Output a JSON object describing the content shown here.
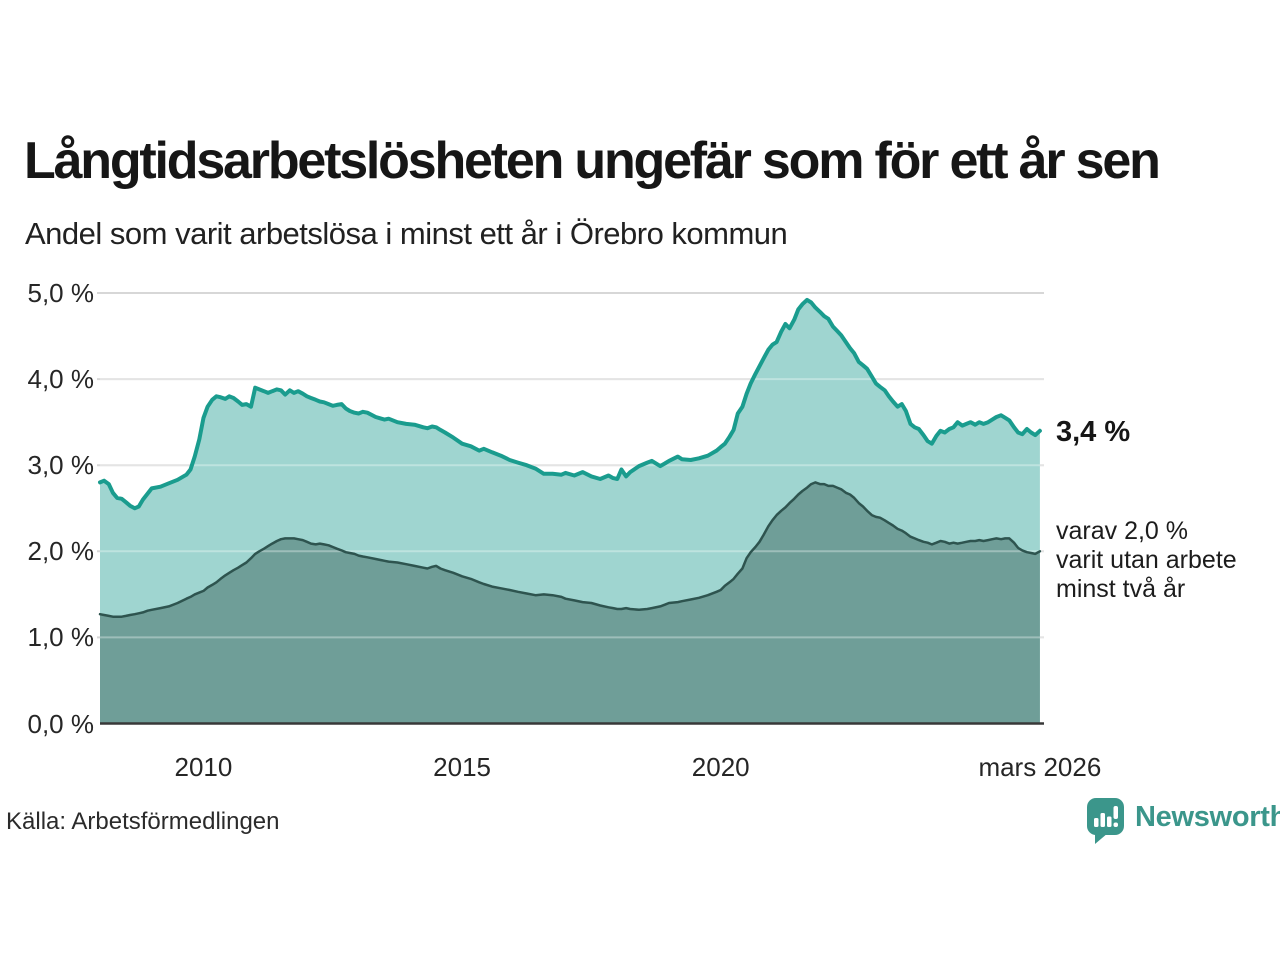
{
  "header": {
    "title": "Långtidsarbetslösheten ungefär som för ett år sen",
    "subtitle": "Andel som varit arbetslösa i minst ett år i Örebro kommun"
  },
  "annotations": {
    "latest_total_label": "3,4 %",
    "secondary_line1": "varav 2,0 %",
    "secondary_line2": "varit utan arbete",
    "secondary_line3": "minst två år"
  },
  "footer": {
    "source": "Källa: Arbetsförmedlingen",
    "brand_name": "Newsworthy",
    "brand_color": "#3b968b",
    "brand_icon": "speech-bubble-bar-chart"
  },
  "chart_data": {
    "type": "area",
    "title": "Långtidsarbetslösheten ungefär som för ett år sen",
    "subtitle": "Andel som varit arbetslösa i minst ett år i Örebro kommun",
    "xlim": [
      2008.0,
      2026.25
    ],
    "ylim": [
      0,
      5
    ],
    "grid": true,
    "grid_color": "#d7d7d7",
    "baseline_color": "#383838",
    "legend_position": "right-annotations",
    "y_ticks": [
      {
        "label": "5,0 %",
        "value": 5
      },
      {
        "label": "4,0 %",
        "value": 4
      },
      {
        "label": "3,0 %",
        "value": 3
      },
      {
        "label": "2,0 %",
        "value": 2
      },
      {
        "label": "1,0 %",
        "value": 1
      },
      {
        "label": "0,0 %",
        "value": 0
      }
    ],
    "x_ticks": [
      {
        "label": "2010",
        "year": 2010
      },
      {
        "label": "2015",
        "year": 2015
      },
      {
        "label": "2020",
        "year": 2020
      },
      {
        "label": "mars 2026",
        "year": 2026.17
      }
    ],
    "series": [
      {
        "name": "Andel arbetslösa minst ett år",
        "stroke": "#1a9c8e",
        "stroke_width": 4,
        "fill": "#9fd5d0",
        "end_value": 3.4
      },
      {
        "name": "varav utan arbete minst två år",
        "stroke": "#2e544f",
        "stroke_width": 2.5,
        "fill": "#6f9e98",
        "end_value": 2.0
      }
    ],
    "points_format": [
      "year",
      "minst_ett_ar_pct",
      "minst_tva_ar_pct"
    ],
    "points": [
      [
        2008.0,
        2.8,
        1.27
      ],
      [
        2008.08,
        2.82,
        1.26
      ],
      [
        2008.17,
        2.78,
        1.25
      ],
      [
        2008.25,
        2.68,
        1.24
      ],
      [
        2008.33,
        2.62,
        1.24
      ],
      [
        2008.42,
        2.61,
        1.24
      ],
      [
        2008.5,
        2.57,
        1.25
      ],
      [
        2008.58,
        2.53,
        1.26
      ],
      [
        2008.67,
        2.5,
        1.27
      ],
      [
        2008.75,
        2.52,
        1.28
      ],
      [
        2008.83,
        2.6,
        1.29
      ],
      [
        2008.92,
        2.67,
        1.31
      ],
      [
        2009.0,
        2.73,
        1.32
      ],
      [
        2009.17,
        2.75,
        1.34
      ],
      [
        2009.33,
        2.79,
        1.36
      ],
      [
        2009.5,
        2.83,
        1.4
      ],
      [
        2009.67,
        2.89,
        1.45
      ],
      [
        2009.75,
        2.95,
        1.47
      ],
      [
        2009.83,
        3.1,
        1.5
      ],
      [
        2009.92,
        3.3,
        1.52
      ],
      [
        2010.0,
        3.55,
        1.54
      ],
      [
        2010.08,
        3.68,
        1.58
      ],
      [
        2010.17,
        3.76,
        1.61
      ],
      [
        2010.25,
        3.8,
        1.64
      ],
      [
        2010.33,
        3.79,
        1.68
      ],
      [
        2010.42,
        3.77,
        1.72
      ],
      [
        2010.5,
        3.8,
        1.75
      ],
      [
        2010.58,
        3.78,
        1.78
      ],
      [
        2010.67,
        3.74,
        1.81
      ],
      [
        2010.75,
        3.7,
        1.84
      ],
      [
        2010.83,
        3.71,
        1.87
      ],
      [
        2010.92,
        3.68,
        1.92
      ],
      [
        2011.0,
        3.9,
        1.97
      ],
      [
        2011.08,
        3.88,
        2.0
      ],
      [
        2011.17,
        3.86,
        2.03
      ],
      [
        2011.25,
        3.84,
        2.06
      ],
      [
        2011.33,
        3.86,
        2.09
      ],
      [
        2011.42,
        3.88,
        2.12
      ],
      [
        2011.5,
        3.87,
        2.14
      ],
      [
        2011.58,
        3.82,
        2.15
      ],
      [
        2011.67,
        3.87,
        2.15
      ],
      [
        2011.75,
        3.84,
        2.15
      ],
      [
        2011.83,
        3.86,
        2.14
      ],
      [
        2011.92,
        3.83,
        2.13
      ],
      [
        2012.0,
        3.8,
        2.11
      ],
      [
        2012.08,
        3.78,
        2.09
      ],
      [
        2012.17,
        3.76,
        2.08
      ],
      [
        2012.25,
        3.74,
        2.09
      ],
      [
        2012.33,
        3.73,
        2.08
      ],
      [
        2012.42,
        3.71,
        2.07
      ],
      [
        2012.5,
        3.69,
        2.05
      ],
      [
        2012.58,
        3.7,
        2.03
      ],
      [
        2012.67,
        3.71,
        2.01
      ],
      [
        2012.75,
        3.66,
        1.99
      ],
      [
        2012.83,
        3.63,
        1.98
      ],
      [
        2012.92,
        3.61,
        1.97
      ],
      [
        2013.0,
        3.6,
        1.95
      ],
      [
        2013.08,
        3.62,
        1.94
      ],
      [
        2013.17,
        3.61,
        1.93
      ],
      [
        2013.33,
        3.56,
        1.91
      ],
      [
        2013.5,
        3.53,
        1.89
      ],
      [
        2013.58,
        3.54,
        1.88
      ],
      [
        2013.75,
        3.5,
        1.87
      ],
      [
        2013.92,
        3.48,
        1.85
      ],
      [
        2014.08,
        3.47,
        1.83
      ],
      [
        2014.25,
        3.44,
        1.81
      ],
      [
        2014.33,
        3.43,
        1.8
      ],
      [
        2014.42,
        3.45,
        1.82
      ],
      [
        2014.5,
        3.44,
        1.83
      ],
      [
        2014.58,
        3.41,
        1.8
      ],
      [
        2014.67,
        3.38,
        1.78
      ],
      [
        2014.83,
        3.32,
        1.75
      ],
      [
        2015.0,
        3.25,
        1.71
      ],
      [
        2015.17,
        3.22,
        1.68
      ],
      [
        2015.33,
        3.17,
        1.64
      ],
      [
        2015.42,
        3.19,
        1.62
      ],
      [
        2015.58,
        3.15,
        1.59
      ],
      [
        2015.75,
        3.11,
        1.57
      ],
      [
        2015.92,
        3.06,
        1.55
      ],
      [
        2016.08,
        3.03,
        1.53
      ],
      [
        2016.25,
        3.0,
        1.51
      ],
      [
        2016.42,
        2.96,
        1.49
      ],
      [
        2016.58,
        2.9,
        1.5
      ],
      [
        2016.75,
        2.9,
        1.49
      ],
      [
        2016.92,
        2.89,
        1.47
      ],
      [
        2017.0,
        2.91,
        1.45
      ],
      [
        2017.17,
        2.88,
        1.43
      ],
      [
        2017.33,
        2.92,
        1.41
      ],
      [
        2017.5,
        2.87,
        1.4
      ],
      [
        2017.67,
        2.84,
        1.37
      ],
      [
        2017.83,
        2.88,
        1.35
      ],
      [
        2017.92,
        2.85,
        1.34
      ],
      [
        2018.0,
        2.84,
        1.33
      ],
      [
        2018.08,
        2.95,
        1.33
      ],
      [
        2018.17,
        2.87,
        1.34
      ],
      [
        2018.25,
        2.92,
        1.33
      ],
      [
        2018.42,
        2.99,
        1.32
      ],
      [
        2018.58,
        3.03,
        1.33
      ],
      [
        2018.67,
        3.05,
        1.34
      ],
      [
        2018.83,
        2.99,
        1.36
      ],
      [
        2018.92,
        3.02,
        1.38
      ],
      [
        2019.0,
        3.05,
        1.4
      ],
      [
        2019.17,
        3.1,
        1.41
      ],
      [
        2019.25,
        3.07,
        1.42
      ],
      [
        2019.42,
        3.06,
        1.44
      ],
      [
        2019.58,
        3.08,
        1.46
      ],
      [
        2019.75,
        3.11,
        1.49
      ],
      [
        2019.92,
        3.17,
        1.53
      ],
      [
        2020.0,
        3.21,
        1.55
      ],
      [
        2020.08,
        3.25,
        1.6
      ],
      [
        2020.17,
        3.33,
        1.64
      ],
      [
        2020.25,
        3.41,
        1.68
      ],
      [
        2020.33,
        3.6,
        1.74
      ],
      [
        2020.42,
        3.68,
        1.8
      ],
      [
        2020.5,
        3.83,
        1.92
      ],
      [
        2020.58,
        3.95,
        1.99
      ],
      [
        2020.67,
        4.06,
        2.05
      ],
      [
        2020.75,
        4.15,
        2.11
      ],
      [
        2020.83,
        4.24,
        2.19
      ],
      [
        2020.92,
        4.34,
        2.29
      ],
      [
        2021.0,
        4.4,
        2.36
      ],
      [
        2021.08,
        4.43,
        2.42
      ],
      [
        2021.17,
        4.55,
        2.47
      ],
      [
        2021.25,
        4.64,
        2.51
      ],
      [
        2021.33,
        4.59,
        2.56
      ],
      [
        2021.42,
        4.69,
        2.61
      ],
      [
        2021.5,
        4.81,
        2.66
      ],
      [
        2021.58,
        4.87,
        2.7
      ],
      [
        2021.67,
        4.92,
        2.74
      ],
      [
        2021.75,
        4.89,
        2.78
      ],
      [
        2021.83,
        4.83,
        2.8
      ],
      [
        2021.92,
        4.78,
        2.78
      ],
      [
        2022.0,
        4.73,
        2.78
      ],
      [
        2022.08,
        4.7,
        2.76
      ],
      [
        2022.17,
        4.61,
        2.76
      ],
      [
        2022.25,
        4.56,
        2.74
      ],
      [
        2022.33,
        4.51,
        2.72
      ],
      [
        2022.42,
        4.43,
        2.68
      ],
      [
        2022.5,
        4.36,
        2.66
      ],
      [
        2022.58,
        4.3,
        2.62
      ],
      [
        2022.67,
        4.2,
        2.56
      ],
      [
        2022.75,
        4.16,
        2.52
      ],
      [
        2022.83,
        4.12,
        2.47
      ],
      [
        2022.92,
        4.03,
        2.42
      ],
      [
        2023.0,
        3.95,
        2.4
      ],
      [
        2023.08,
        3.91,
        2.39
      ],
      [
        2023.17,
        3.87,
        2.36
      ],
      [
        2023.25,
        3.8,
        2.33
      ],
      [
        2023.33,
        3.74,
        2.3
      ],
      [
        2023.42,
        3.68,
        2.26
      ],
      [
        2023.5,
        3.71,
        2.24
      ],
      [
        2023.58,
        3.63,
        2.21
      ],
      [
        2023.67,
        3.48,
        2.17
      ],
      [
        2023.75,
        3.44,
        2.15
      ],
      [
        2023.83,
        3.42,
        2.13
      ],
      [
        2023.92,
        3.35,
        2.11
      ],
      [
        2024.0,
        3.28,
        2.1
      ],
      [
        2024.08,
        3.25,
        2.08
      ],
      [
        2024.17,
        3.34,
        2.1
      ],
      [
        2024.25,
        3.4,
        2.12
      ],
      [
        2024.33,
        3.38,
        2.11
      ],
      [
        2024.42,
        3.42,
        2.09
      ],
      [
        2024.5,
        3.44,
        2.1
      ],
      [
        2024.58,
        3.5,
        2.09
      ],
      [
        2024.67,
        3.46,
        2.1
      ],
      [
        2024.75,
        3.48,
        2.11
      ],
      [
        2024.83,
        3.5,
        2.12
      ],
      [
        2024.92,
        3.47,
        2.12
      ],
      [
        2025.0,
        3.5,
        2.13
      ],
      [
        2025.08,
        3.48,
        2.12
      ],
      [
        2025.17,
        3.5,
        2.13
      ],
      [
        2025.25,
        3.53,
        2.14
      ],
      [
        2025.33,
        3.56,
        2.15
      ],
      [
        2025.42,
        3.58,
        2.14
      ],
      [
        2025.5,
        3.55,
        2.15
      ],
      [
        2025.58,
        3.52,
        2.15
      ],
      [
        2025.67,
        3.44,
        2.1
      ],
      [
        2025.75,
        3.38,
        2.04
      ],
      [
        2025.83,
        3.36,
        2.01
      ],
      [
        2025.92,
        3.42,
        1.99
      ],
      [
        2026.0,
        3.38,
        1.98
      ],
      [
        2026.08,
        3.35,
        1.97
      ],
      [
        2026.17,
        3.4,
        2.0
      ]
    ]
  }
}
